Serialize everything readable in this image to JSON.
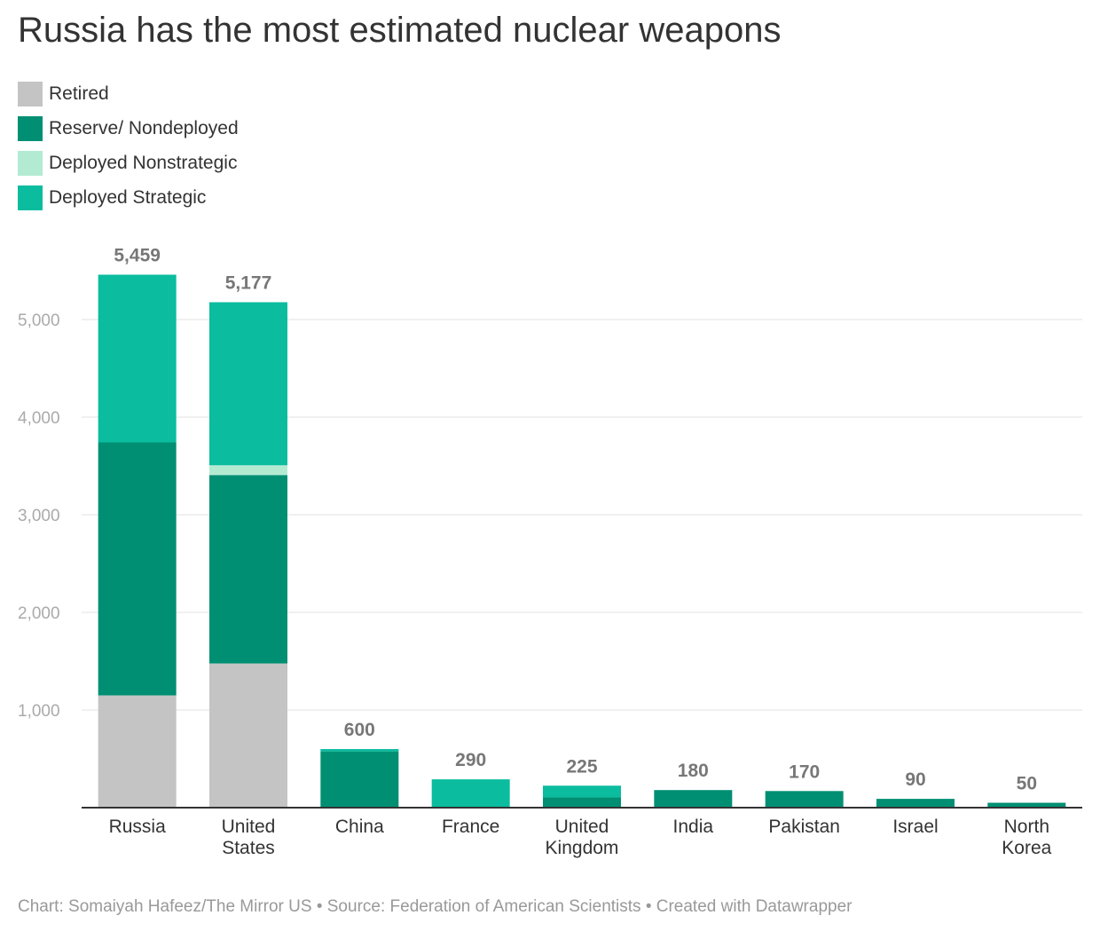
{
  "chart_data": {
    "type": "bar",
    "stacked": true,
    "title": "Russia has the most estimated nuclear weapons",
    "categories": [
      "Russia",
      "United States",
      "China",
      "France",
      "United Kingdom",
      "India",
      "Pakistan",
      "Israel",
      "North Korea"
    ],
    "category_labels": [
      [
        "Russia"
      ],
      [
        "United",
        "States"
      ],
      [
        "China"
      ],
      [
        "France"
      ],
      [
        "United",
        "Kingdom"
      ],
      [
        "India"
      ],
      [
        "Pakistan"
      ],
      [
        "Israel"
      ],
      [
        "North",
        "Korea"
      ]
    ],
    "series": [
      {
        "name": "Retired",
        "color": "#c4c4c4",
        "values": [
          1150,
          1477,
          0,
          0,
          0,
          0,
          0,
          0,
          0
        ]
      },
      {
        "name": "Reserve/ Nondeployed",
        "color": "#008f72",
        "values": [
          2591,
          1930,
          576,
          0,
          105,
          180,
          170,
          90,
          50
        ]
      },
      {
        "name": "Deployed Nonstrategic",
        "color": "#b3ebd2",
        "values": [
          0,
          100,
          0,
          0,
          0,
          0,
          0,
          0,
          0
        ]
      },
      {
        "name": "Deployed Strategic",
        "color": "#0bbc9f",
        "values": [
          1718,
          1670,
          24,
          290,
          120,
          0,
          0,
          0,
          0
        ]
      }
    ],
    "totals": [
      "5,459",
      "5,177",
      "600",
      "290",
      "225",
      "180",
      "170",
      "90",
      "50"
    ],
    "yticks": [
      1000,
      2000,
      3000,
      4000,
      5000
    ],
    "ytick_labels": [
      "1,000",
      "2,000",
      "3,000",
      "4,000",
      "5,000"
    ],
    "ylim": [
      0,
      5459
    ],
    "grid": true,
    "legend_position": "top-left"
  },
  "footer": "Chart: Somaiyah Hafeez/The Mirror US • Source: Federation of American Scientists • Created with Datawrapper"
}
